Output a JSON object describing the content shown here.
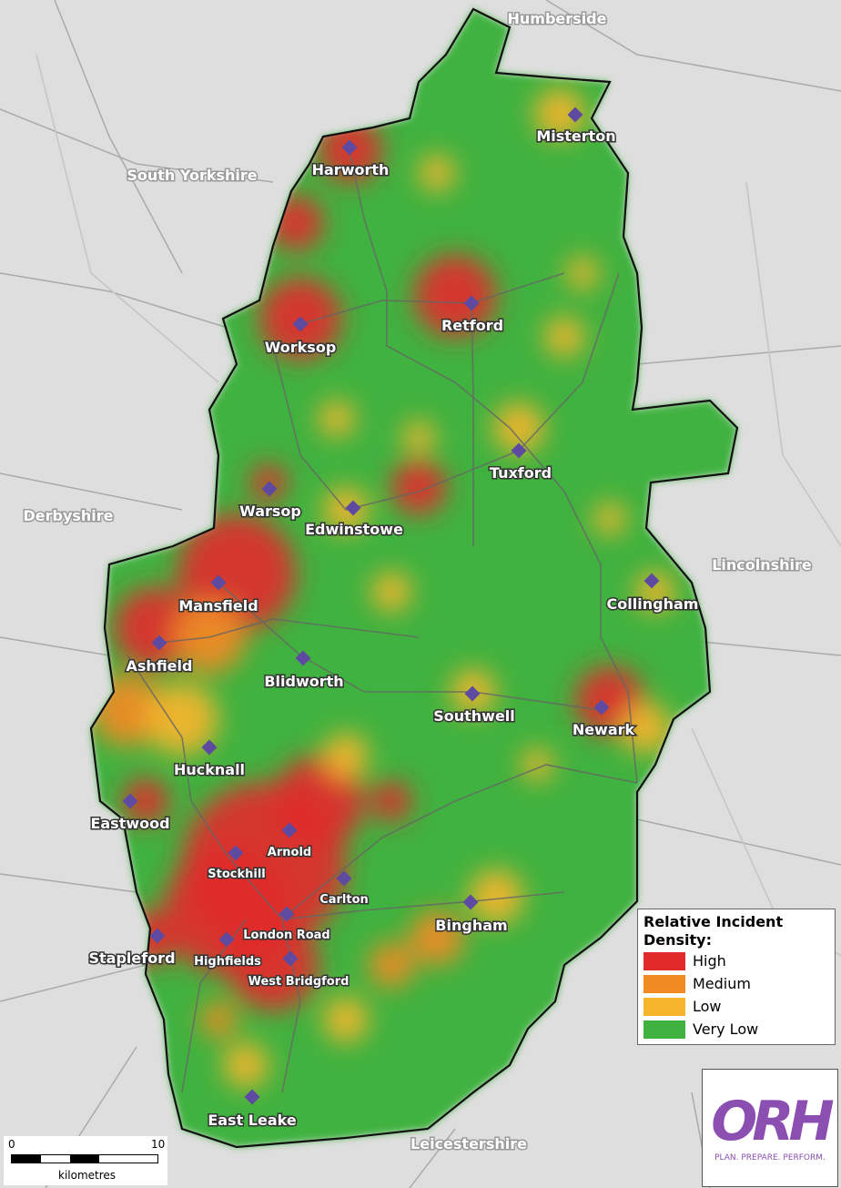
{
  "regions": [
    "Humberside",
    "South Yorkshire",
    "Derbyshire",
    "Lincolnshire",
    "Leicestershire"
  ],
  "towns": [
    {
      "label": "Harworth"
    },
    {
      "label": "Misterton"
    },
    {
      "label": "Worksop"
    },
    {
      "label": "Retford"
    },
    {
      "label": "Tuxford"
    },
    {
      "label": "Warsop"
    },
    {
      "label": "Edwinstowe"
    },
    {
      "label": "Collingham"
    },
    {
      "label": "Mansfield"
    },
    {
      "label": "Ashfield"
    },
    {
      "label": "Blidworth"
    },
    {
      "label": "Southwell"
    },
    {
      "label": "Newark"
    },
    {
      "label": "Hucknall"
    },
    {
      "label": "Eastwood"
    },
    {
      "label": "Arnold"
    },
    {
      "label": "Stockhill"
    },
    {
      "label": "Carlton"
    },
    {
      "label": "Bingham"
    },
    {
      "label": "London Road"
    },
    {
      "label": "Stapleford"
    },
    {
      "label": "Highfields"
    },
    {
      "label": "West Bridgford"
    },
    {
      "label": "East Leake"
    }
  ],
  "legend": {
    "title": "Relative Incident Density:",
    "items": [
      {
        "label": "High",
        "color": "#e12a2a"
      },
      {
        "label": "Medium",
        "color": "#f28a24"
      },
      {
        "label": "Low",
        "color": "#f7b52b"
      },
      {
        "label": "Very Low",
        "color": "#3fb23f"
      }
    ]
  },
  "scale_bar": {
    "start": "0",
    "end": "10",
    "unit": "kilometres"
  },
  "logo": {
    "text": "ORH",
    "tagline": "PLAN. PREPARE. PERFORM."
  }
}
